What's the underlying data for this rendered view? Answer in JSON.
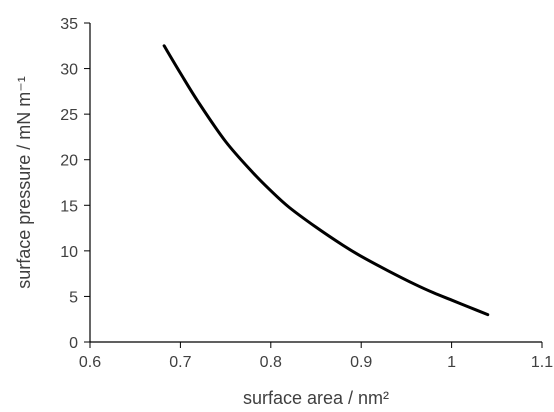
{
  "chart_data": {
    "type": "line",
    "xlabel": "surface area / nm²",
    "ylabel": "surface pressure / mN m⁻¹",
    "xlim": [
      0.6,
      1.1
    ],
    "ylim": [
      0,
      35
    ],
    "xticks": [
      0.6,
      0.7,
      0.8,
      0.9,
      1.0,
      1.1
    ],
    "xtick_labels": [
      "0.6",
      "0.7",
      "0.8",
      "0.9",
      "1",
      "1.1"
    ],
    "yticks": [
      0,
      5,
      10,
      15,
      20,
      25,
      30,
      35
    ],
    "ytick_labels": [
      "0",
      "5",
      "10",
      "15",
      "20",
      "25",
      "30",
      "35"
    ],
    "grid": false,
    "legend": "none",
    "line_color": "#000000",
    "axis_color": "#000000",
    "text_color": "#404040",
    "series": [
      {
        "x": [
          0.682,
          0.7,
          0.72,
          0.75,
          0.78,
          0.8,
          0.82,
          0.85,
          0.88,
          0.9,
          0.93,
          0.96,
          0.98,
          1.0,
          1.02,
          1.04
        ],
        "y": [
          32.5,
          29.5,
          26.3,
          22.0,
          18.6,
          16.6,
          14.8,
          12.6,
          10.6,
          9.4,
          7.8,
          6.3,
          5.4,
          4.6,
          3.8,
          3.0
        ]
      }
    ]
  }
}
